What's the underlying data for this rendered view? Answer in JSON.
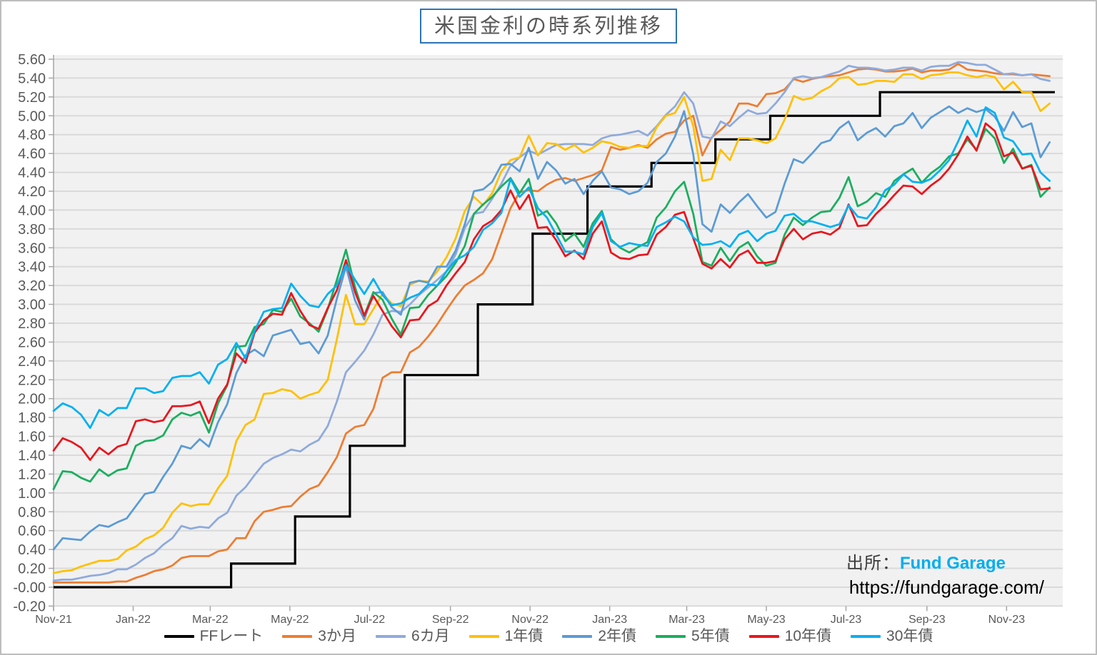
{
  "title": "米国金利の時系列推移",
  "source": {
    "label": "出所：",
    "name": "Fund Garage",
    "url": "https://fundgarage.com/"
  },
  "chart_data": {
    "type": "line",
    "title": "米国金利の時系列推移",
    "grid": true,
    "legend_position": "bottom",
    "plot_bg": "#F1F1F1",
    "grid_color": "#DADADA",
    "axis_text_color": "#595959",
    "y_axis": {
      "min": -0.2,
      "max": 5.6,
      "step": 0.2,
      "decimals": 2
    },
    "x_axis": {
      "ticks": [
        {
          "label": "Nov-21",
          "day": 0
        },
        {
          "label": "Jan-22",
          "day": 61
        },
        {
          "label": "Mar-22",
          "day": 120
        },
        {
          "label": "May-22",
          "day": 181
        },
        {
          "label": "Jul-22",
          "day": 242
        },
        {
          "label": "Sep-22",
          "day": 304
        },
        {
          "label": "Nov-22",
          "day": 365
        },
        {
          "label": "Jan-23",
          "day": 426
        },
        {
          "label": "Mar-23",
          "day": 485
        },
        {
          "label": "May-23",
          "day": 546
        },
        {
          "label": "Jul-23",
          "day": 607
        },
        {
          "label": "Sep-23",
          "day": 669
        },
        {
          "label": "Nov-23",
          "day": 730
        }
      ]
    },
    "sampling": {
      "unit": "days-since-2021-11-01",
      "interval_days": 7,
      "total_days": 767,
      "note": "weekly readings Nov-2021 to early-Dec-2023"
    },
    "series": [
      {
        "name": "FFレート",
        "color": "#000000",
        "style": "step",
        "changes": [
          [
            0,
            0.0
          ],
          [
            136,
            0.25
          ],
          [
            185,
            0.75
          ],
          [
            227,
            1.5
          ],
          [
            269,
            2.25
          ],
          [
            325,
            3.0
          ],
          [
            367,
            3.75
          ],
          [
            409,
            4.25
          ],
          [
            458,
            4.5
          ],
          [
            507,
            4.75
          ],
          [
            549,
            5.0
          ],
          [
            633,
            5.25
          ]
        ]
      },
      {
        "name": "3か月",
        "color": "#ED7D31",
        "values": [
          0.05,
          0.05,
          0.05,
          0.05,
          0.05,
          0.05,
          0.05,
          0.06,
          0.06,
          0.1,
          0.13,
          0.17,
          0.19,
          0.23,
          0.31,
          0.33,
          0.33,
          0.33,
          0.38,
          0.4,
          0.52,
          0.52,
          0.7,
          0.8,
          0.82,
          0.85,
          0.86,
          0.96,
          1.04,
          1.08,
          1.22,
          1.38,
          1.63,
          1.7,
          1.72,
          1.89,
          2.22,
          2.28,
          2.28,
          2.49,
          2.55,
          2.66,
          2.79,
          2.94,
          3.08,
          3.2,
          3.26,
          3.33,
          3.48,
          3.75,
          4.02,
          4.19,
          4.21,
          4.2,
          4.27,
          4.32,
          4.34,
          4.31,
          4.34,
          4.37,
          4.42,
          4.67,
          4.64,
          4.66,
          4.69,
          4.66,
          4.75,
          4.81,
          4.83,
          4.95,
          5.0,
          4.58,
          4.77,
          4.85,
          4.94,
          5.13,
          5.13,
          5.1,
          5.23,
          5.24,
          5.28,
          5.39,
          5.36,
          5.39,
          5.41,
          5.42,
          5.43,
          5.46,
          5.49,
          5.5,
          5.49,
          5.47,
          5.47,
          5.48,
          5.5,
          5.46,
          5.48,
          5.48,
          5.49,
          5.55,
          5.49,
          5.48,
          5.47,
          5.45,
          5.44,
          5.44,
          5.43,
          5.44,
          5.43,
          5.42
        ]
      },
      {
        "name": "6カ月",
        "color": "#8FAADC",
        "values": [
          0.07,
          0.08,
          0.08,
          0.1,
          0.12,
          0.13,
          0.15,
          0.19,
          0.19,
          0.24,
          0.31,
          0.36,
          0.45,
          0.52,
          0.65,
          0.62,
          0.64,
          0.63,
          0.73,
          0.79,
          0.97,
          1.06,
          1.19,
          1.31,
          1.37,
          1.41,
          1.46,
          1.44,
          1.51,
          1.56,
          1.71,
          1.97,
          2.28,
          2.39,
          2.51,
          2.68,
          2.89,
          2.93,
          2.92,
          3.0,
          3.1,
          3.18,
          3.26,
          3.35,
          3.53,
          3.81,
          3.96,
          3.98,
          4.12,
          4.28,
          4.47,
          4.56,
          4.63,
          4.59,
          4.64,
          4.69,
          4.7,
          4.7,
          4.7,
          4.69,
          4.76,
          4.79,
          4.8,
          4.82,
          4.84,
          4.79,
          4.89,
          5.01,
          5.1,
          5.25,
          5.13,
          4.78,
          4.76,
          4.94,
          4.89,
          4.98,
          5.06,
          5.02,
          5.03,
          5.13,
          5.25,
          5.4,
          5.42,
          5.4,
          5.41,
          5.44,
          5.47,
          5.53,
          5.51,
          5.51,
          5.5,
          5.48,
          5.49,
          5.51,
          5.51,
          5.48,
          5.52,
          5.53,
          5.53,
          5.57,
          5.56,
          5.54,
          5.54,
          5.49,
          5.44,
          5.45,
          5.43,
          5.44,
          5.39,
          5.37
        ]
      },
      {
        "name": "1年債",
        "color": "#FFC000",
        "values": [
          0.15,
          0.17,
          0.18,
          0.22,
          0.25,
          0.28,
          0.28,
          0.3,
          0.39,
          0.43,
          0.51,
          0.55,
          0.63,
          0.79,
          0.89,
          0.86,
          0.88,
          0.88,
          1.05,
          1.18,
          1.55,
          1.72,
          1.78,
          2.05,
          2.06,
          2.1,
          2.08,
          2.0,
          2.04,
          2.07,
          2.2,
          2.63,
          3.1,
          2.79,
          2.79,
          2.95,
          3.11,
          3.01,
          2.98,
          3.21,
          3.25,
          3.24,
          3.35,
          3.5,
          3.7,
          3.99,
          4.14,
          4.05,
          4.18,
          4.41,
          4.53,
          4.56,
          4.79,
          4.58,
          4.71,
          4.7,
          4.64,
          4.69,
          4.61,
          4.66,
          4.73,
          4.71,
          4.67,
          4.66,
          4.68,
          4.68,
          4.88,
          5.0,
          5.03,
          5.2,
          4.89,
          4.31,
          4.33,
          4.64,
          4.53,
          4.76,
          4.76,
          4.74,
          4.71,
          4.76,
          4.96,
          5.21,
          5.17,
          5.19,
          5.26,
          5.31,
          5.4,
          5.41,
          5.33,
          5.34,
          5.37,
          5.37,
          5.36,
          5.44,
          5.44,
          5.39,
          5.43,
          5.44,
          5.46,
          5.46,
          5.43,
          5.41,
          5.43,
          5.41,
          5.28,
          5.36,
          5.25,
          5.25,
          5.05,
          5.13
        ]
      },
      {
        "name": "2年債",
        "color": "#5B9BD5",
        "values": [
          0.4,
          0.52,
          0.51,
          0.5,
          0.59,
          0.66,
          0.64,
          0.69,
          0.73,
          0.86,
          0.99,
          1.01,
          1.17,
          1.31,
          1.5,
          1.47,
          1.57,
          1.49,
          1.75,
          1.94,
          2.27,
          2.46,
          2.52,
          2.45,
          2.67,
          2.7,
          2.73,
          2.58,
          2.6,
          2.48,
          2.67,
          3.06,
          3.4,
          3.04,
          2.84,
          3.12,
          3.13,
          2.97,
          2.89,
          3.23,
          3.25,
          3.23,
          3.4,
          3.4,
          3.57,
          3.85,
          4.2,
          4.22,
          4.3,
          4.48,
          4.49,
          4.41,
          4.66,
          4.33,
          4.51,
          4.42,
          4.28,
          4.33,
          4.17,
          4.31,
          4.41,
          4.24,
          4.22,
          4.17,
          4.2,
          4.29,
          4.51,
          4.6,
          4.78,
          5.05,
          4.59,
          3.85,
          3.77,
          4.06,
          3.97,
          4.08,
          4.17,
          4.04,
          3.92,
          3.98,
          4.28,
          4.54,
          4.5,
          4.6,
          4.71,
          4.74,
          4.87,
          4.94,
          4.74,
          4.82,
          4.87,
          4.78,
          4.89,
          4.92,
          5.03,
          4.87,
          4.98,
          5.04,
          5.1,
          5.03,
          5.08,
          5.04,
          5.07,
          4.99,
          4.84,
          5.04,
          4.88,
          4.92,
          4.56,
          4.72
        ]
      },
      {
        "name": "5年債",
        "color": "#1BAE5F",
        "values": [
          1.04,
          1.23,
          1.22,
          1.16,
          1.12,
          1.25,
          1.18,
          1.24,
          1.26,
          1.5,
          1.55,
          1.56,
          1.61,
          1.78,
          1.85,
          1.82,
          1.86,
          1.64,
          1.95,
          2.14,
          2.55,
          2.56,
          2.76,
          2.79,
          2.94,
          2.92,
          3.06,
          2.87,
          2.8,
          2.71,
          2.95,
          3.26,
          3.58,
          3.18,
          2.88,
          3.13,
          3.05,
          2.85,
          2.68,
          2.96,
          2.97,
          3.1,
          3.2,
          3.3,
          3.44,
          3.62,
          3.96,
          4.06,
          4.14,
          4.25,
          4.34,
          4.18,
          4.33,
          3.94,
          3.99,
          3.86,
          3.67,
          3.75,
          3.61,
          3.86,
          3.99,
          3.69,
          3.6,
          3.55,
          3.61,
          3.66,
          3.92,
          4.03,
          4.2,
          4.3,
          3.96,
          3.45,
          3.41,
          3.6,
          3.46,
          3.6,
          3.66,
          3.51,
          3.41,
          3.44,
          3.74,
          3.92,
          3.84,
          3.92,
          3.98,
          3.99,
          4.13,
          4.35,
          4.04,
          4.09,
          4.18,
          4.14,
          4.31,
          4.38,
          4.44,
          4.29,
          4.39,
          4.46,
          4.57,
          4.6,
          4.75,
          4.64,
          4.86,
          4.76,
          4.5,
          4.65,
          4.44,
          4.48,
          4.14,
          4.24
        ]
      },
      {
        "name": "10年債",
        "color": "#E8161E",
        "values": [
          1.45,
          1.58,
          1.54,
          1.48,
          1.35,
          1.48,
          1.41,
          1.49,
          1.52,
          1.76,
          1.78,
          1.75,
          1.77,
          1.92,
          1.92,
          1.93,
          1.97,
          1.74,
          2.0,
          2.15,
          2.48,
          2.38,
          2.7,
          2.83,
          2.9,
          2.89,
          3.12,
          2.93,
          2.78,
          2.74,
          2.96,
          3.15,
          3.47,
          3.13,
          2.88,
          3.09,
          2.93,
          2.77,
          2.65,
          2.83,
          2.84,
          2.98,
          3.04,
          3.2,
          3.33,
          3.45,
          3.69,
          3.83,
          3.89,
          4.0,
          4.21,
          4.01,
          4.16,
          3.81,
          3.82,
          3.68,
          3.51,
          3.57,
          3.48,
          3.75,
          3.88,
          3.55,
          3.49,
          3.48,
          3.52,
          3.53,
          3.74,
          3.82,
          3.95,
          3.98,
          3.7,
          3.43,
          3.38,
          3.48,
          3.39,
          3.52,
          3.57,
          3.44,
          3.44,
          3.46,
          3.69,
          3.8,
          3.69,
          3.75,
          3.77,
          3.74,
          3.81,
          4.06,
          3.83,
          3.84,
          3.96,
          4.05,
          4.16,
          4.26,
          4.25,
          4.17,
          4.26,
          4.33,
          4.44,
          4.59,
          4.78,
          4.63,
          4.92,
          4.84,
          4.57,
          4.61,
          4.44,
          4.47,
          4.22,
          4.23
        ]
      },
      {
        "name": "30年債",
        "color": "#00B0F0",
        "values": [
          1.87,
          1.95,
          1.91,
          1.83,
          1.69,
          1.88,
          1.82,
          1.9,
          1.9,
          2.11,
          2.11,
          2.06,
          2.08,
          2.22,
          2.24,
          2.24,
          2.28,
          2.16,
          2.36,
          2.42,
          2.59,
          2.43,
          2.72,
          2.92,
          2.95,
          2.96,
          3.22,
          3.09,
          2.99,
          2.97,
          3.11,
          3.2,
          3.42,
          3.26,
          3.11,
          3.27,
          3.1,
          2.99,
          3.01,
          3.07,
          3.11,
          3.21,
          3.2,
          3.35,
          3.47,
          3.52,
          3.61,
          3.79,
          3.86,
          3.97,
          4.33,
          4.14,
          4.24,
          4.02,
          3.92,
          3.74,
          3.56,
          3.56,
          3.53,
          3.82,
          3.97,
          3.67,
          3.61,
          3.65,
          3.63,
          3.62,
          3.82,
          3.87,
          3.93,
          3.88,
          3.71,
          3.63,
          3.64,
          3.67,
          3.61,
          3.74,
          3.78,
          3.67,
          3.75,
          3.78,
          3.94,
          3.96,
          3.88,
          3.88,
          3.85,
          3.82,
          3.85,
          4.05,
          3.93,
          3.91,
          4.03,
          4.21,
          4.27,
          4.38,
          4.3,
          4.29,
          4.33,
          4.42,
          4.53,
          4.73,
          4.95,
          4.78,
          5.09,
          5.03,
          4.77,
          4.73,
          4.59,
          4.6,
          4.4,
          4.31
        ]
      }
    ]
  }
}
